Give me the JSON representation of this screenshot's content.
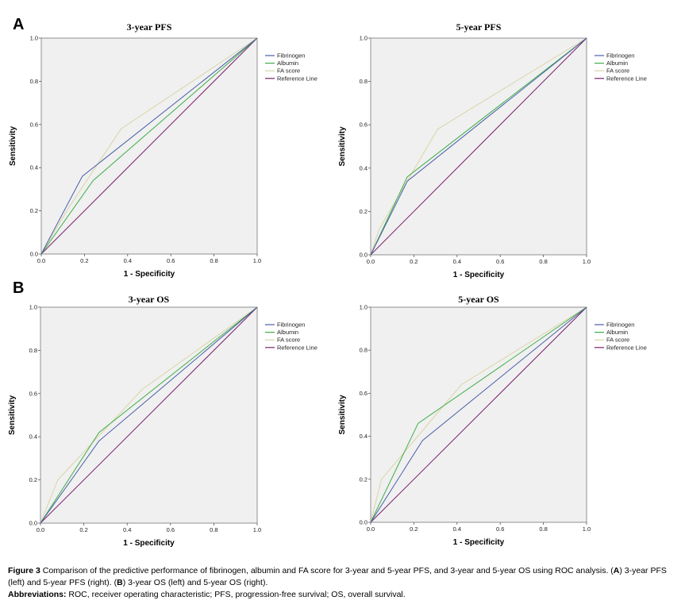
{
  "panel_letters": [
    "A",
    "B"
  ],
  "chart_data": [
    {
      "type": "line",
      "title": "3-year PFS",
      "xlabel": "1 - Specificity",
      "ylabel": "Sensitivity",
      "xlim": [
        0,
        1
      ],
      "ylim": [
        0,
        1
      ],
      "ticks": [
        "0.0",
        "0.2",
        "0.4",
        "0.6",
        "0.8",
        "1.0"
      ],
      "series": [
        {
          "name": "Fibrinogen",
          "color": "#4a5fa8",
          "points": [
            [
              0,
              0
            ],
            [
              0.19,
              0.36
            ],
            [
              1,
              1
            ]
          ]
        },
        {
          "name": "Albumin",
          "color": "#3fae49",
          "points": [
            [
              0,
              0
            ],
            [
              0.24,
              0.34
            ],
            [
              1,
              1
            ]
          ]
        },
        {
          "name": "FA score",
          "color": "#d9d4a6",
          "points": [
            [
              0,
              0
            ],
            [
              0.13,
              0.22
            ],
            [
              0.37,
              0.58
            ],
            [
              1,
              1
            ]
          ]
        },
        {
          "name": "Reference Line",
          "color": "#7b1f6e",
          "points": [
            [
              0,
              0
            ],
            [
              1,
              1
            ]
          ]
        }
      ]
    },
    {
      "type": "line",
      "title": "5-year PFS",
      "xlabel": "1 - Specificity",
      "ylabel": "Sensitivity",
      "xlim": [
        0,
        1
      ],
      "ylim": [
        0,
        1
      ],
      "ticks": [
        "0.0",
        "0.2",
        "0.4",
        "0.6",
        "0.8",
        "1.0"
      ],
      "series": [
        {
          "name": "Fibrinogen",
          "color": "#4a5fa8",
          "points": [
            [
              0,
              0
            ],
            [
              0.17,
              0.34
            ],
            [
              1,
              1
            ]
          ]
        },
        {
          "name": "Albumin",
          "color": "#3fae49",
          "points": [
            [
              0,
              0
            ],
            [
              0.17,
              0.36
            ],
            [
              1,
              1
            ]
          ]
        },
        {
          "name": "FA score",
          "color": "#d9d4a6",
          "points": [
            [
              0,
              0
            ],
            [
              0.04,
              0.12
            ],
            [
              0.31,
              0.58
            ],
            [
              1,
              1
            ]
          ]
        },
        {
          "name": "Reference Line",
          "color": "#7b1f6e",
          "points": [
            [
              0,
              0
            ],
            [
              1,
              1
            ]
          ]
        }
      ]
    },
    {
      "type": "line",
      "title": "3-year OS",
      "xlabel": "1 - Specificity",
      "ylabel": "Sensitivity",
      "xlim": [
        0,
        1
      ],
      "ylim": [
        0,
        1
      ],
      "ticks": [
        "0.0",
        "0.2",
        "0.4",
        "0.6",
        "0.8",
        "1.0"
      ],
      "series": [
        {
          "name": "Fibrinogen",
          "color": "#4a5fa8",
          "points": [
            [
              0,
              0
            ],
            [
              0.27,
              0.38
            ],
            [
              1,
              1
            ]
          ]
        },
        {
          "name": "Albumin",
          "color": "#3fae49",
          "points": [
            [
              0,
              0
            ],
            [
              0.27,
              0.42
            ],
            [
              1,
              1
            ]
          ]
        },
        {
          "name": "FA score",
          "color": "#d9d4a6",
          "points": [
            [
              0,
              0
            ],
            [
              0.08,
              0.2
            ],
            [
              0.47,
              0.62
            ],
            [
              1,
              1
            ]
          ]
        },
        {
          "name": "Reference Line",
          "color": "#7b1f6e",
          "points": [
            [
              0,
              0
            ],
            [
              1,
              1
            ]
          ]
        }
      ]
    },
    {
      "type": "line",
      "title": "5-year OS",
      "xlabel": "1 - Specificity",
      "ylabel": "Sensitivity",
      "xlim": [
        0,
        1
      ],
      "ylim": [
        0,
        1
      ],
      "ticks": [
        "0.0",
        "0.2",
        "0.4",
        "0.6",
        "0.8",
        "1.0"
      ],
      "series": [
        {
          "name": "Fibrinogen",
          "color": "#4a5fa8",
          "points": [
            [
              0,
              0
            ],
            [
              0.24,
              0.38
            ],
            [
              1,
              1
            ]
          ]
        },
        {
          "name": "Albumin",
          "color": "#3fae49",
          "points": [
            [
              0,
              0
            ],
            [
              0.22,
              0.46
            ],
            [
              1,
              1
            ]
          ]
        },
        {
          "name": "FA score",
          "color": "#d9d4a6",
          "points": [
            [
              0,
              0
            ],
            [
              0.05,
              0.2
            ],
            [
              0.42,
              0.64
            ],
            [
              1,
              1
            ]
          ]
        },
        {
          "name": "Reference Line",
          "color": "#7b1f6e",
          "points": [
            [
              0,
              0
            ],
            [
              1,
              1
            ]
          ]
        }
      ]
    }
  ],
  "caption": {
    "fig_label": "Figure 3",
    "fig_text": " Comparison of the predictive performance of fibrinogen, albumin and FA score for 3-year and 5-year PFS, and 3-year and 5-year OS using ROC analysis. (",
    "a_label": "A",
    "mid_text": ") 3-year PFS (left) and 5-year PFS (right). (",
    "b_label": "B",
    "end_text": ") 3-year OS (left) and 5-year OS (right).",
    "abbr_label": "Abbreviations:",
    "abbr_text": " ROC, receiver operating characteristic; PFS, progression-free survival; OS, overall survival."
  }
}
